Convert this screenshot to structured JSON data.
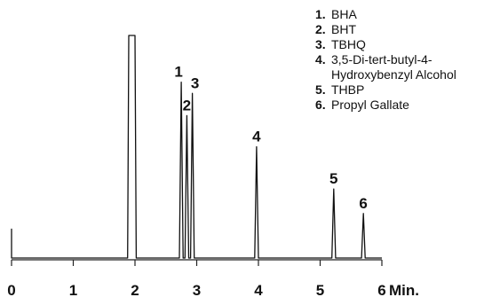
{
  "chart_data": {
    "type": "line",
    "x_unit": "Min.",
    "xlim": [
      0,
      6
    ],
    "x_ticks": [
      "0",
      "1",
      "2",
      "3",
      "4",
      "5",
      "6"
    ],
    "grid": false,
    "legend_position": "top-right",
    "legend": [
      {
        "num": "1.",
        "name": "BHA"
      },
      {
        "num": "2.",
        "name": "BHT"
      },
      {
        "num": "3.",
        "name": "TBHQ"
      },
      {
        "num": "4.",
        "name": "3,5-Di-tert-butyl-4-Hydroxybenzyl Alcohol"
      },
      {
        "num": "5.",
        "name": "THBP"
      },
      {
        "num": "6.",
        "name": "Propyl Gallate"
      }
    ],
    "baseline": 0,
    "solvent_front": {
      "x": [
        1.9,
        2.0
      ],
      "height": 1.0
    },
    "peaks": [
      {
        "label": "1",
        "x": 2.75,
        "height": 0.79
      },
      {
        "label": "2",
        "x": 2.84,
        "height": 0.64
      },
      {
        "label": "3",
        "x": 2.93,
        "height": 0.74
      },
      {
        "label": "4",
        "x": 3.97,
        "height": 0.5
      },
      {
        "label": "5",
        "x": 5.22,
        "height": 0.31
      },
      {
        "label": "6",
        "x": 5.7,
        "height": 0.2
      }
    ]
  }
}
